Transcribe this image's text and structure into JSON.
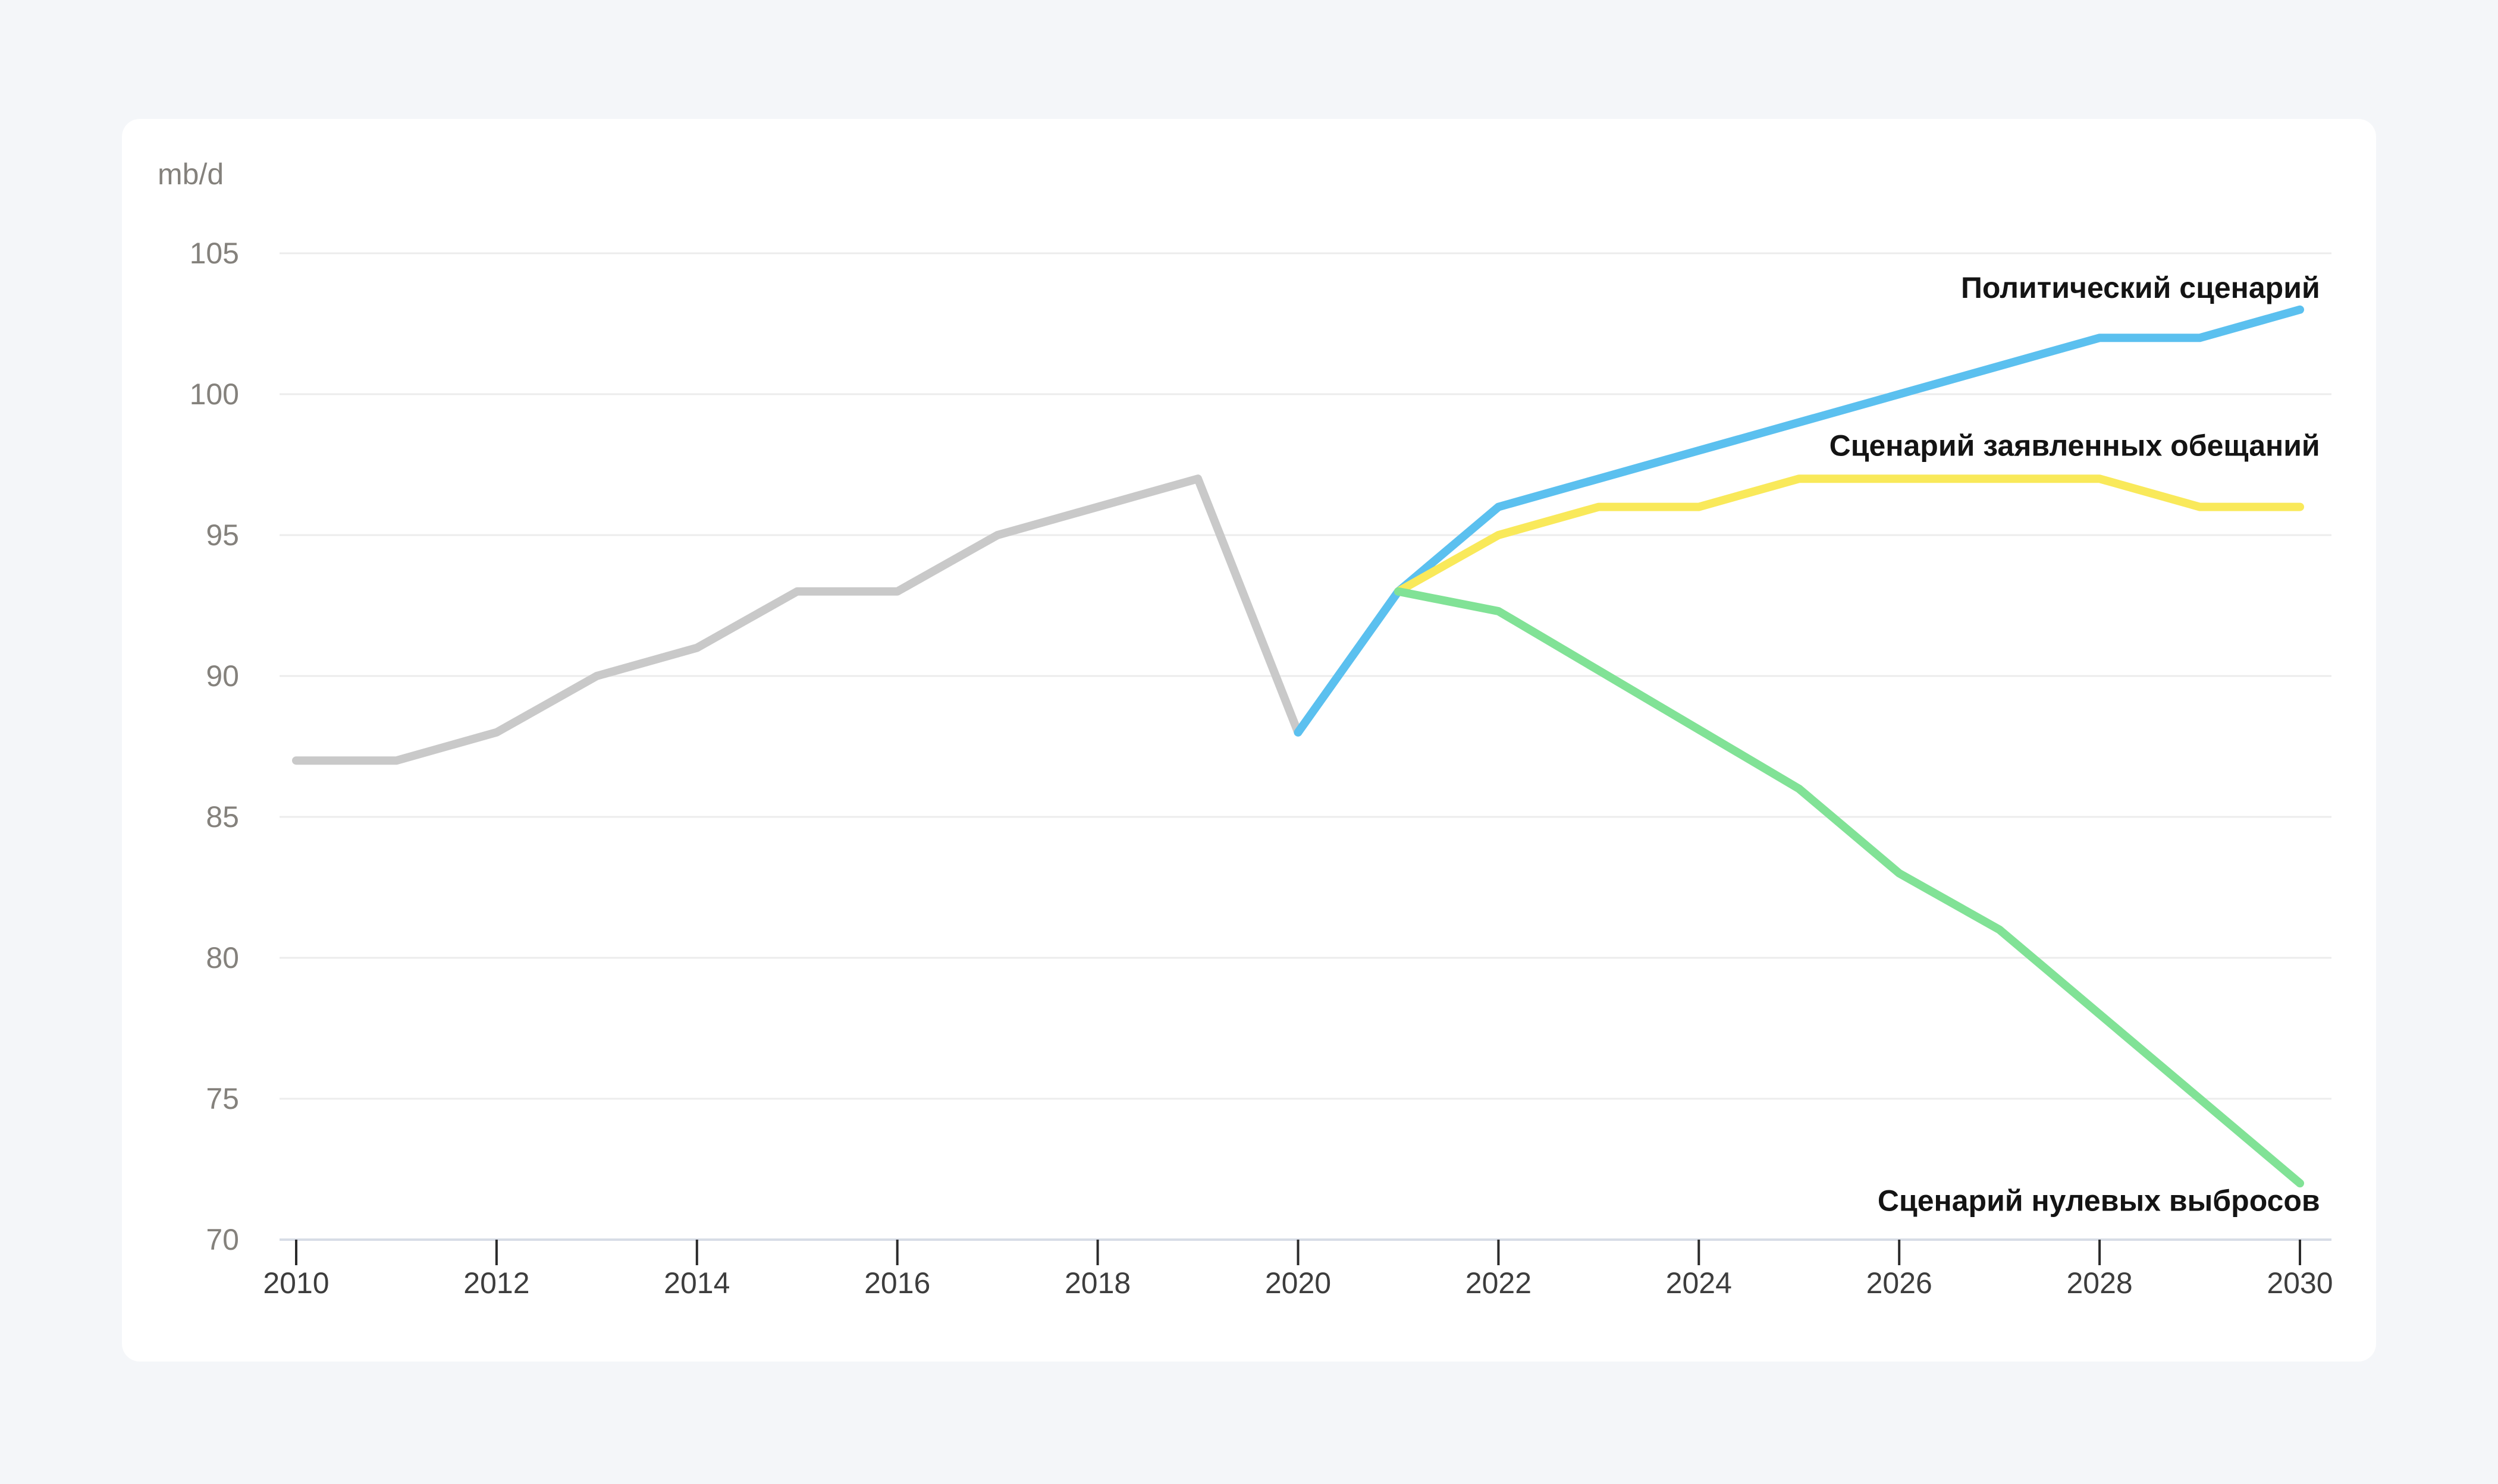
{
  "page": {
    "background": "#F4F6F9",
    "card_background": "#FFFFFF"
  },
  "chart_data": {
    "type": "line",
    "title": "",
    "unit_label": "mb/d",
    "x": {
      "min": 2010,
      "max": 2030,
      "ticks": [
        2010,
        2012,
        2014,
        2016,
        2018,
        2020,
        2022,
        2024,
        2026,
        2028,
        2030
      ]
    },
    "y": {
      "min": 70,
      "max": 105,
      "ticks": [
        70,
        75,
        80,
        85,
        90,
        95,
        100,
        105
      ],
      "grid": true
    },
    "series": [
      {
        "name": "historical-demand",
        "label": "",
        "color": "#C9C9C9",
        "start_year": 2010,
        "years": [
          2010,
          2011,
          2012,
          2013,
          2014,
          2015,
          2016,
          2017,
          2018,
          2019,
          2020
        ],
        "values": [
          87,
          87,
          88,
          90,
          91,
          93,
          93,
          95,
          96,
          97,
          88
        ]
      },
      {
        "name": "politicheskiy-scenariy",
        "label": "Политический сценарий",
        "color": "#5BC0EF",
        "start_year": 2020,
        "years": [
          2020,
          2021,
          2022,
          2023,
          2024,
          2025,
          2026,
          2027,
          2028,
          2029,
          2030
        ],
        "values": [
          88,
          93,
          96,
          97,
          98,
          99,
          100,
          101,
          102,
          102,
          103
        ]
      },
      {
        "name": "scenariy-zayavlennykh-obeschaniy",
        "label": "Сценарий заявленных обещаний",
        "color": "#F9E95A",
        "start_year": 2021,
        "years": [
          2021,
          2022,
          2023,
          2024,
          2025,
          2026,
          2027,
          2028,
          2029,
          2030
        ],
        "values": [
          93,
          95,
          96,
          96,
          97,
          97,
          97,
          97,
          96,
          96
        ]
      },
      {
        "name": "scenariy-nulevykh-vybrosov",
        "label": "Сценарий нулевых выбросов",
        "color": "#81E296",
        "start_year": 2021,
        "years": [
          2021,
          2022,
          2023,
          2024,
          2025,
          2026,
          2027,
          2028,
          2029,
          2030
        ],
        "values": [
          93,
          92.3,
          90.2,
          88.1,
          86,
          83,
          81,
          78,
          75,
          72
        ]
      }
    ],
    "annotations": [
      {
        "text": "Политический сценарий",
        "year": 2030.2,
        "value": 103.7,
        "align": "end",
        "series": "politicheskiy-scenariy"
      },
      {
        "text": "Сценарий заявленных обещаний",
        "year": 2030.2,
        "value": 98.1,
        "align": "end",
        "series": "scenariy-zayavlennykh-obeschaniy"
      },
      {
        "text": "Сценарий нулевых выбросов",
        "year": 2030.2,
        "value": 71.3,
        "align": "end",
        "series": "scenariy-nulevykh-vybrosov"
      }
    ],
    "legend_position": "inline-end-labels",
    "axis_colors": {
      "gridline": "#ECECEC",
      "baseline": "#D7DCE6",
      "tick": "#2B2B2B",
      "y_label": "#84817C",
      "x_label": "#3D3D3D",
      "annotation_text": "#141414"
    }
  }
}
